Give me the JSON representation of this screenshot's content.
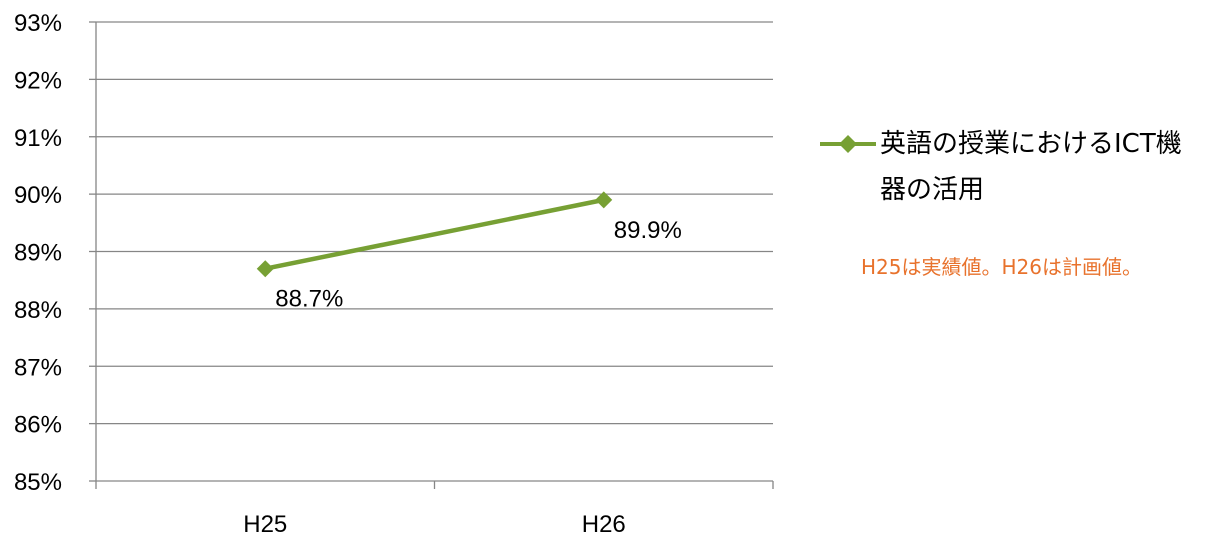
{
  "chart_data": {
    "type": "line",
    "categories": [
      "H25",
      "H26"
    ],
    "series": [
      {
        "name": "英語の授業におけるICT機器の活用",
        "values": [
          0.887,
          0.899
        ],
        "labels": [
          "88.7%",
          "89.9%"
        ],
        "color": "#77a034"
      }
    ],
    "ylim": [
      0.85,
      0.93
    ],
    "yticks": [
      "85%",
      "86%",
      "87%",
      "88%",
      "89%",
      "90%",
      "91%",
      "92%",
      "93%"
    ],
    "grid": true,
    "legend_placement": "right"
  },
  "note": "H25は実績値。H26は計画値。",
  "colors": {
    "series": "#77a034",
    "note": "#e8722c",
    "grid": "#868686"
  }
}
